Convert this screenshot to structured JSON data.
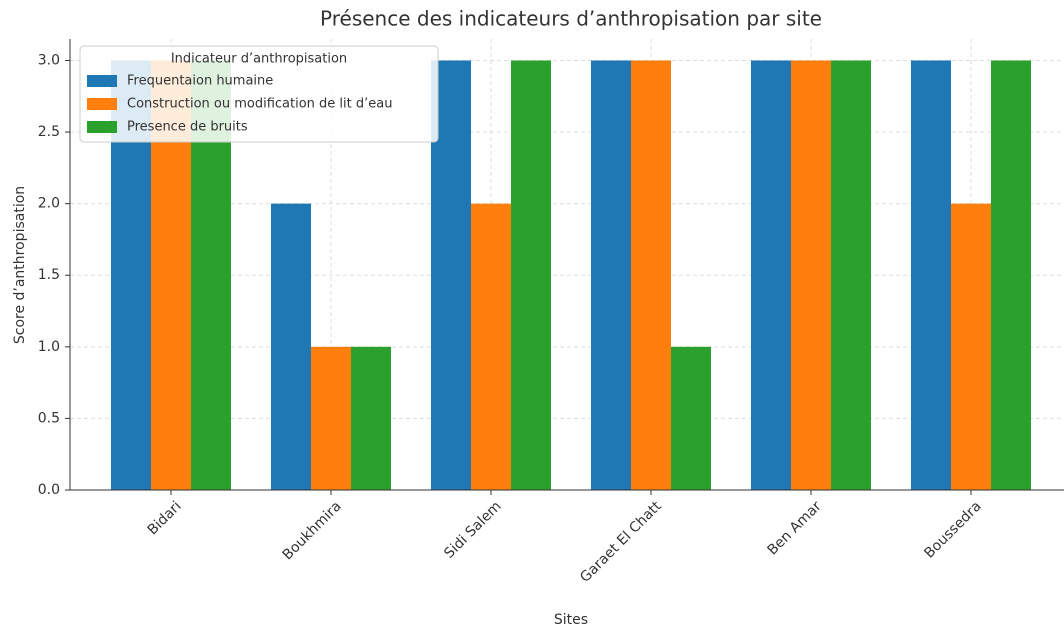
{
  "chart_data": {
    "type": "bar",
    "title": "Présence des indicateurs d’anthropisation par site",
    "xlabel": "Sites",
    "ylabel": "Score d’anthropisation",
    "categories": [
      "Bidari",
      "Boukhmira",
      "Sidi Salem",
      "Garaet El Chatt",
      "Ben Amar",
      "Boussedra"
    ],
    "series": [
      {
        "name": "Frequentaion humaine",
        "color": "#1f77b4",
        "values": [
          3,
          2,
          3,
          3,
          3,
          3
        ]
      },
      {
        "name": "Construction ou modification de lit d’eau",
        "color": "#ff7f0e",
        "values": [
          3,
          1,
          2,
          3,
          3,
          2
        ]
      },
      {
        "name": "Presence de bruits",
        "color": "#2ca02c",
        "values": [
          3,
          1,
          3,
          1,
          3,
          3
        ]
      }
    ],
    "legend_title": "Indicateur d’anthropisation",
    "legend": "upper left",
    "ylim": [
      0,
      3.15
    ],
    "yticks": [
      {
        "value": 0,
        "label": "0.0"
      },
      0.5,
      {
        "value": 1,
        "label": "1.0"
      },
      1.5,
      {
        "value": 2,
        "label": "2.0"
      },
      2.5,
      {
        "value": 3,
        "label": "3.0"
      }
    ],
    "grid": true
  }
}
